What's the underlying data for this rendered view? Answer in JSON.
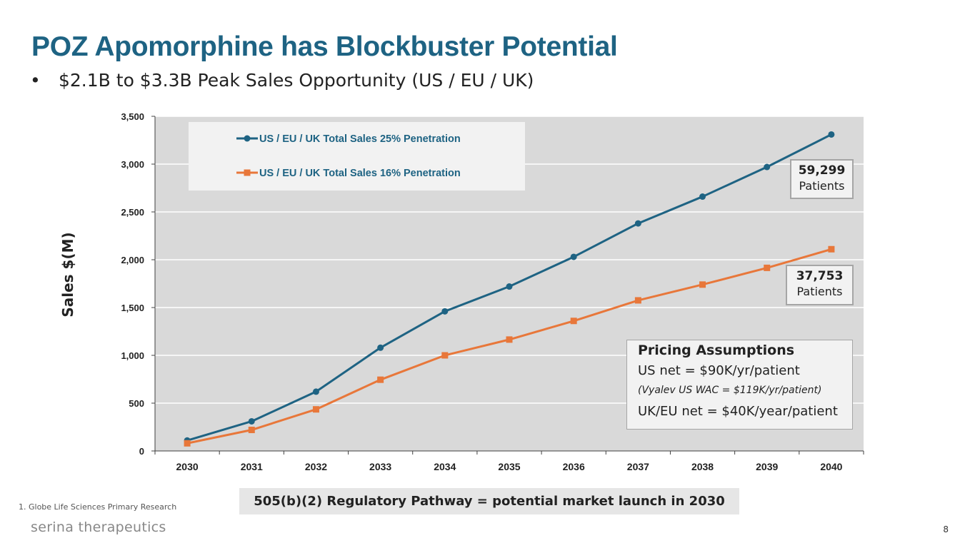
{
  "slide": {
    "title": "POZ Apomorphine has Blockbuster Potential",
    "bullet_marker": "•",
    "bullet": "$2.1B to $3.3B Peak Sales Opportunity (US / EU / UK)",
    "banner": "505(b)(2) Regulatory Pathway = potential market launch in 2030",
    "footnote": "1.  Globe Life Sciences Primary Research",
    "logo": "serina therapeutics",
    "page_number": "8"
  },
  "callouts": {
    "upper": {
      "number": "59,299",
      "label": "Patients"
    },
    "lower": {
      "number": "37,753",
      "label": "Patients"
    }
  },
  "pricing": {
    "heading": "Pricing Assumptions",
    "line1": "US net = $90K/yr/patient",
    "line2": "(Vyalev US WAC = $119K/yr/patient)",
    "line3": "UK/EU net = $40K/year/patient"
  },
  "chart_data": {
    "type": "line",
    "ylabel": "Sales $(M)",
    "xlabel": "",
    "ylim": [
      0,
      3500
    ],
    "yticks": [
      "0",
      "500",
      "1,000",
      "1,500",
      "2,000",
      "2,500",
      "3,000",
      "3,500"
    ],
    "categories": [
      "2030",
      "2031",
      "2032",
      "2033",
      "2034",
      "2035",
      "2036",
      "2037",
      "2038",
      "2039",
      "2040"
    ],
    "grid": true,
    "legend_position": "top-left",
    "series": [
      {
        "name": "US / EU / UK Total Sales 25% Penetration",
        "color": "#1e6383",
        "marker": "circle",
        "values": [
          110,
          310,
          620,
          1080,
          1460,
          1720,
          2030,
          2380,
          2660,
          2970,
          3310
        ]
      },
      {
        "name": "US / EU / UK Total Sales 16% Penetration",
        "color": "#e8773a",
        "marker": "square",
        "values": [
          80,
          220,
          435,
          745,
          1000,
          1165,
          1360,
          1575,
          1740,
          1915,
          2110
        ]
      }
    ]
  }
}
